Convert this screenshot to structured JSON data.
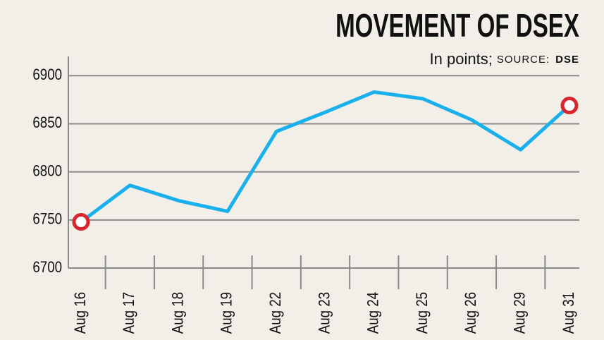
{
  "chart_data": {
    "type": "line",
    "title": "MOVEMENT OF DSEX",
    "subtitle": "In points;",
    "source_label": "SOURCE:",
    "source": "DSE",
    "categories": [
      "Aug 16",
      "Aug 17",
      "Aug 18",
      "Aug 19",
      "Aug 22",
      "Aug 23",
      "Aug 24",
      "Aug 25",
      "Aug 26",
      "Aug 29",
      "Aug 31"
    ],
    "values": [
      6748,
      6786,
      6770,
      6759,
      6842,
      6862,
      6883,
      6876,
      6854,
      6823,
      6869
    ],
    "color": "#1ab0ec",
    "end_markers": true,
    "marker_color": "#d7262e",
    "ylim": [
      6700,
      6920
    ],
    "yticks": [
      6700,
      6750,
      6800,
      6850,
      6900
    ],
    "grid": true
  }
}
